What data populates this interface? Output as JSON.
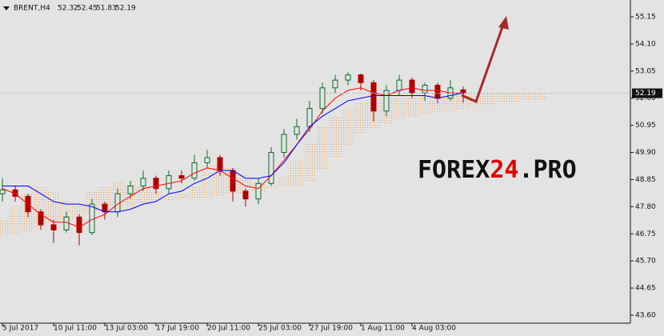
{
  "chart_data": {
    "type": "candlestick",
    "header": {
      "symbol": "BRENT,H4",
      "ohlc": [
        52.32,
        52.45,
        51.83,
        52.19
      ]
    },
    "watermark": [
      "FOREX",
      "24",
      ".PRO"
    ],
    "categories": [
      "5 Jul 2017",
      null,
      null,
      null,
      "10 Jul 11:00",
      null,
      null,
      null,
      "13 Jul 03:00",
      null,
      null,
      null,
      "17 Jul 19:00",
      null,
      null,
      null,
      "20 Jul 11:00",
      null,
      null,
      null,
      "25 Jul 03:00",
      null,
      null,
      null,
      "27 Jul 19:00",
      null,
      null,
      null,
      "1 Aug 11:00",
      null,
      null,
      null,
      "4 Aug 03:00",
      null,
      null,
      null,
      null,
      null,
      null,
      null,
      null,
      null,
      null
    ],
    "open": [
      48.3,
      48.45,
      48.2,
      47.6,
      47.1,
      46.9,
      47.4,
      46.8,
      47.9,
      47.6,
      48.3,
      48.6,
      48.9,
      48.5,
      49.0,
      48.9,
      49.5,
      49.7,
      49.2,
      48.4,
      48.1,
      48.7,
      49.9,
      50.6,
      50.9,
      51.6,
      52.4,
      52.7,
      52.9,
      52.6,
      51.5,
      52.3,
      52.7,
      52.2,
      52.5,
      52.0,
      52.32,
      null,
      null,
      null,
      null,
      null,
      null
    ],
    "high": [
      48.9,
      48.6,
      48.3,
      47.7,
      47.3,
      47.6,
      47.5,
      48.1,
      48.0,
      48.5,
      48.8,
      49.2,
      49.0,
      49.2,
      49.2,
      49.8,
      50.0,
      49.8,
      49.3,
      48.5,
      48.9,
      50.1,
      50.8,
      51.2,
      51.9,
      52.6,
      52.9,
      53.0,
      52.95,
      52.7,
      52.5,
      52.9,
      52.8,
      52.6,
      52.6,
      52.7,
      52.45,
      null,
      null,
      null,
      null,
      null,
      null
    ],
    "low": [
      48.0,
      48.0,
      47.4,
      46.9,
      46.4,
      46.8,
      46.3,
      46.7,
      47.3,
      47.4,
      48.1,
      48.4,
      48.3,
      48.3,
      48.7,
      48.8,
      49.3,
      49.0,
      48.0,
      47.8,
      47.9,
      48.6,
      49.7,
      50.4,
      50.7,
      51.4,
      52.2,
      52.5,
      52.3,
      51.1,
      51.3,
      52.1,
      52.0,
      51.9,
      51.8,
      51.9,
      51.83,
      null,
      null,
      null,
      null,
      null,
      null
    ],
    "close": [
      48.45,
      48.2,
      47.6,
      47.1,
      46.9,
      47.4,
      46.8,
      47.9,
      47.6,
      48.3,
      48.6,
      48.9,
      48.5,
      49.0,
      48.9,
      49.5,
      49.7,
      49.2,
      48.4,
      48.1,
      48.7,
      49.9,
      50.6,
      50.9,
      51.6,
      52.4,
      52.7,
      52.9,
      52.6,
      51.5,
      52.3,
      52.7,
      52.2,
      52.5,
      52.0,
      52.4,
      52.19,
      null,
      null,
      null,
      null,
      null,
      null
    ],
    "up_color": "#0b6b2e",
    "down_color": "#b00000",
    "lines": [
      {
        "color": "#ff0000",
        "values": [
          48.5,
          48.3,
          47.9,
          47.5,
          47.2,
          47.2,
          47.0,
          47.3,
          47.5,
          47.9,
          48.2,
          48.5,
          48.6,
          48.7,
          48.8,
          49.1,
          49.3,
          49.2,
          48.9,
          48.6,
          48.5,
          49.0,
          49.6,
          50.2,
          50.8,
          51.5,
          52.0,
          52.3,
          52.4,
          52.2,
          52.1,
          52.3,
          52.4,
          52.3,
          52.3,
          52.2,
          52.2,
          null,
          null,
          null,
          null,
          null,
          null
        ]
      },
      {
        "color": "#0000ff",
        "values": [
          48.6,
          48.6,
          48.6,
          48.3,
          48.0,
          47.9,
          47.9,
          47.8,
          47.6,
          47.6,
          47.7,
          47.9,
          48.0,
          48.3,
          48.4,
          48.7,
          48.9,
          49.2,
          49.2,
          48.9,
          48.9,
          49.0,
          49.5,
          50.2,
          50.9,
          51.3,
          51.6,
          51.9,
          52.0,
          52.1,
          52.1,
          52.1,
          52.1,
          52.1,
          52.0,
          52.1,
          52.2,
          null,
          null,
          null,
          null,
          null,
          null
        ]
      }
    ],
    "cloud": {
      "color": "#f4a050",
      "span_a": [
        47.3,
        47.8,
        48.3,
        48.6,
        48.4,
        48.0,
        47.9,
        48.4,
        48.6,
        48.8,
        48.7,
        48.6,
        48.4,
        48.2,
        48.3,
        48.6,
        49.1,
        49.4,
        49.3,
        49.0,
        48.7,
        48.6,
        49.0,
        49.6,
        50.3,
        50.9,
        51.3,
        51.6,
        51.8,
        51.9,
        52.0,
        52.0,
        52.0,
        52.1,
        52.1,
        52.1,
        52.1,
        52.1,
        52.2,
        52.2,
        52.2,
        52.2,
        52.2
      ],
      "span_b": [
        46.6,
        46.7,
        46.8,
        47.0,
        47.2,
        47.3,
        47.5,
        47.6,
        47.8,
        47.7,
        47.8,
        47.9,
        48.0,
        48.0,
        48.1,
        48.1,
        48.1,
        48.2,
        48.3,
        48.3,
        48.4,
        48.5,
        48.6,
        48.6,
        48.8,
        49.2,
        49.7,
        50.2,
        50.6,
        50.8,
        51.0,
        51.2,
        51.3,
        51.4,
        51.5,
        51.5,
        51.6,
        51.7,
        51.7,
        51.8,
        51.8,
        51.9,
        51.9
      ]
    },
    "last_price": 52.19,
    "ylim": [
      43.29,
      55.8
    ],
    "yticks": [
      {
        "value": 43.6,
        "label": "43.60"
      },
      {
        "value": 44.65,
        "label": "44.65"
      },
      {
        "value": 45.7,
        "label": "45.70"
      },
      {
        "value": 46.75,
        "label": "46.75"
      },
      {
        "value": 47.8,
        "label": "47.80"
      },
      {
        "value": 48.85,
        "label": "48.85"
      },
      {
        "value": 49.9,
        "label": "49.90"
      },
      {
        "value": 50.95,
        "label": "50.95"
      },
      {
        "value": 52.0,
        "label": "52.00"
      },
      {
        "value": 53.05,
        "label": "53.05"
      },
      {
        "value": 54.1,
        "label": "54.10"
      },
      {
        "value": 55.15,
        "label": "55.15"
      }
    ]
  }
}
